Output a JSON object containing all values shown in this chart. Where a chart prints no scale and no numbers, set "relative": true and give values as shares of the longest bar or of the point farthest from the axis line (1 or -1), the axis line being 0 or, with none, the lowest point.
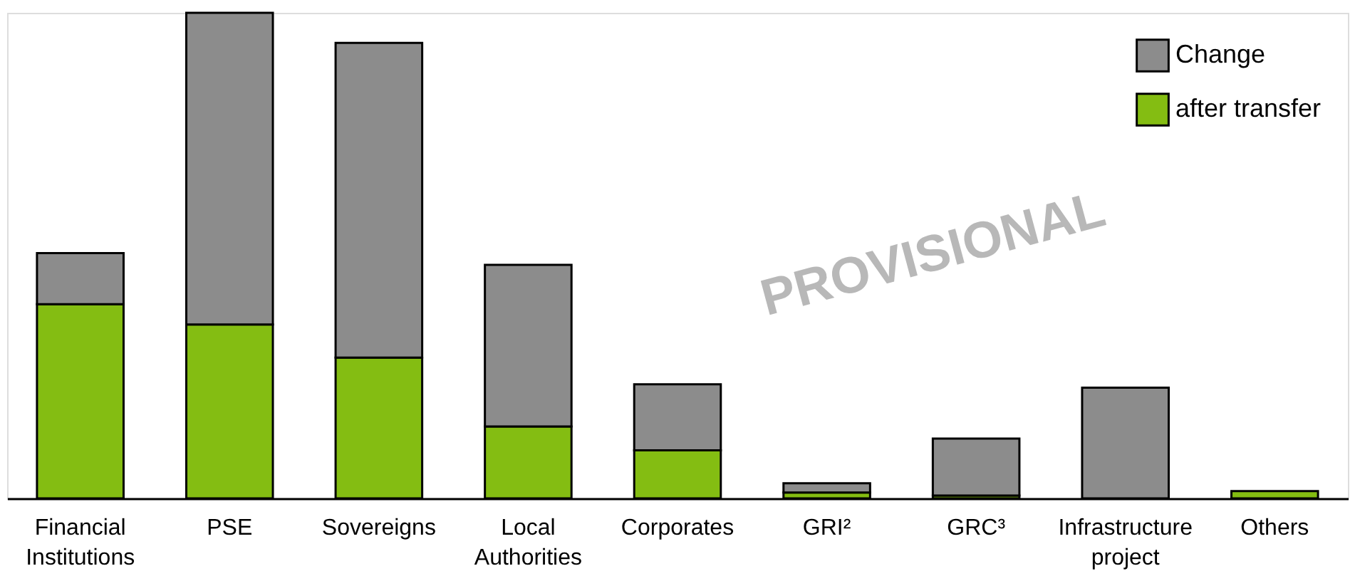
{
  "chart_data": {
    "type": "bar",
    "stacked": true,
    "relative": true,
    "legend": "top right",
    "grid": false,
    "categories": [
      "Financial\nInstitutions",
      "PSE",
      "Sovereigns",
      "Local\nAuthorities",
      "Corporates",
      "GRI²",
      "GRC³",
      "Infrastructure\nproject",
      "Others"
    ],
    "series": [
      {
        "name": "after transfer",
        "color": "#84bd12",
        "values": [
          0.4,
          0.358,
          0.29,
          0.148,
          0.099,
          0.012,
          0.006,
          0,
          0.015
        ]
      },
      {
        "name": "Change",
        "color": "#8c8c8c",
        "values": [
          0.105,
          0.642,
          0.648,
          0.333,
          0.136,
          0.019,
          0.117,
          0.228,
          null
        ]
      }
    ],
    "annotations": [
      "PROVISIONAL"
    ]
  }
}
